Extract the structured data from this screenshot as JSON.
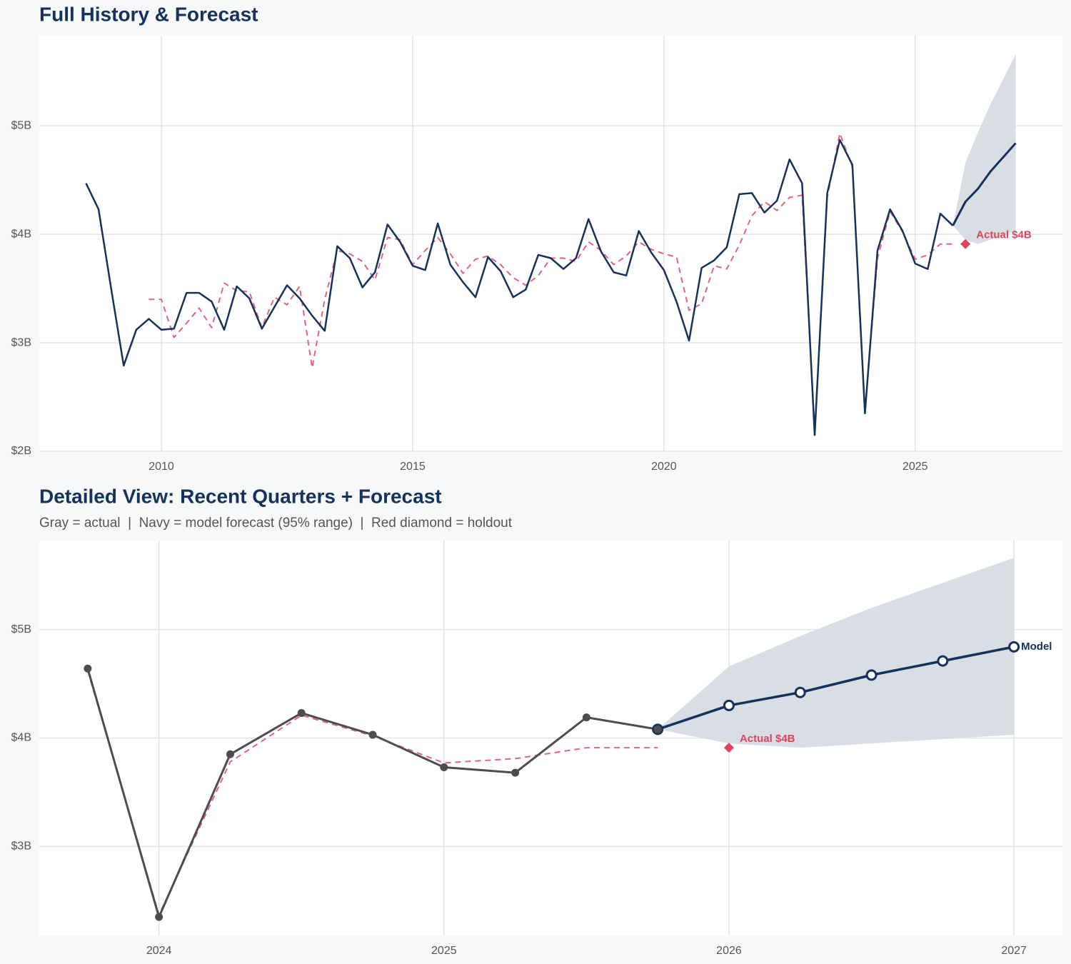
{
  "chart_data": [
    {
      "type": "line",
      "title": "Full History & Forecast",
      "xlim": [
        2007.57,
        2027.93
      ],
      "xticks": [
        2010,
        2015,
        2020,
        2025
      ],
      "ylim": [
        2,
        5.83
      ],
      "yticks": [
        {
          "value": 2,
          "label": "$2B"
        },
        {
          "value": 3,
          "label": "$3B"
        },
        {
          "value": 4,
          "label": "$4B"
        },
        {
          "value": 5,
          "label": "$5B"
        }
      ],
      "grid": true,
      "band": {
        "color": "#d5dae2",
        "x": [
          2025.75,
          2026,
          2026.25,
          2026.5,
          2026.75,
          2027
        ],
        "upper": [
          4.08,
          4.66,
          4.94,
          5.2,
          5.43,
          5.66
        ],
        "lower": [
          4.08,
          3.95,
          3.91,
          3.95,
          3.99,
          4.03
        ]
      },
      "series": [
        {
          "color": "#e3647d",
          "dash": true,
          "width": 2,
          "x": [
            2009.75,
            2010,
            2010.25,
            2010.5,
            2010.75,
            2011,
            2011.25,
            2011.5,
            2011.75,
            2012,
            2012.25,
            2012.5,
            2012.75,
            2013,
            2013.25,
            2013.5,
            2013.75,
            2014,
            2014.25,
            2014.5,
            2014.75,
            2015,
            2015.25,
            2015.5,
            2015.75,
            2016,
            2016.25,
            2016.5,
            2016.75,
            2017,
            2017.25,
            2017.5,
            2017.75,
            2018,
            2018.25,
            2018.5,
            2018.75,
            2019,
            2019.25,
            2019.5,
            2019.75,
            2020,
            2020.25,
            2020.5,
            2020.75,
            2021,
            2021.25,
            2021.5,
            2021.75,
            2022,
            2022.25,
            2022.5,
            2022.75,
            2023,
            2023.25,
            2023.5,
            2023.75,
            2024,
            2024.25,
            2024.5,
            2024.75,
            2025,
            2025.25,
            2025.5,
            2025.75
          ],
          "values": [
            3.4,
            3.4,
            3.05,
            3.18,
            3.32,
            3.14,
            3.55,
            3.48,
            3.47,
            3.14,
            3.42,
            3.35,
            3.52,
            2.77,
            3.4,
            3.85,
            3.82,
            3.75,
            3.58,
            3.97,
            3.95,
            3.72,
            3.85,
            3.97,
            3.82,
            3.64,
            3.77,
            3.8,
            3.72,
            3.6,
            3.53,
            3.62,
            3.78,
            3.78,
            3.75,
            3.93,
            3.85,
            3.72,
            3.8,
            3.93,
            3.86,
            3.82,
            3.79,
            3.3,
            3.36,
            3.71,
            3.68,
            3.9,
            4.17,
            4.3,
            4.22,
            4.34,
            4.36,
            2.2,
            4.34,
            4.93,
            4.62,
            2.37,
            3.78,
            4.21,
            4.02,
            3.77,
            3.81,
            3.91,
            3.91
          ]
        },
        {
          "color": "#14325c",
          "width": 3,
          "x": [
            2025.75,
            2026,
            2026.25,
            2026.5,
            2026.75,
            2027
          ],
          "values": [
            4.08,
            4.3,
            4.42,
            4.58,
            4.71,
            4.84
          ]
        },
        {
          "color": "#14325c",
          "width": 2.5,
          "x": [
            2008.5,
            2008.75,
            2009,
            2009.25,
            2009.5,
            2009.75,
            2010,
            2010.25,
            2010.5,
            2010.75,
            2011,
            2011.25,
            2011.5,
            2011.75,
            2012,
            2012.25,
            2012.5,
            2012.75,
            2013,
            2013.25,
            2013.5,
            2013.75,
            2014,
            2014.25,
            2014.5,
            2014.75,
            2015,
            2015.25,
            2015.5,
            2015.75,
            2016,
            2016.25,
            2016.5,
            2016.75,
            2017,
            2017.25,
            2017.5,
            2017.75,
            2018,
            2018.25,
            2018.5,
            2018.75,
            2019,
            2019.25,
            2019.5,
            2019.75,
            2020,
            2020.25,
            2020.5,
            2020.75,
            2021,
            2021.25,
            2021.5,
            2021.75,
            2022,
            2022.25,
            2022.5,
            2022.75,
            2023,
            2023.25,
            2023.5,
            2023.75,
            2024,
            2024.25,
            2024.5,
            2024.75,
            2025,
            2025.25,
            2025.5,
            2025.75
          ],
          "values": [
            4.47,
            4.23,
            3.5,
            2.79,
            3.12,
            3.22,
            3.12,
            3.13,
            3.46,
            3.46,
            3.38,
            3.12,
            3.52,
            3.41,
            3.13,
            3.33,
            3.53,
            3.41,
            3.25,
            3.11,
            3.89,
            3.78,
            3.51,
            3.65,
            4.09,
            3.93,
            3.71,
            3.67,
            4.1,
            3.72,
            3.56,
            3.42,
            3.79,
            3.66,
            3.42,
            3.49,
            3.81,
            3.78,
            3.68,
            3.78,
            4.14,
            3.84,
            3.65,
            3.62,
            4.03,
            3.83,
            3.67,
            3.38,
            3.02,
            3.69,
            3.76,
            3.88,
            4.37,
            4.38,
            4.2,
            4.31,
            4.69,
            4.47,
            2.15,
            4.38,
            4.87,
            4.64,
            2.35,
            3.85,
            4.23,
            4.03,
            3.73,
            3.68,
            4.19,
            4.08
          ]
        }
      ],
      "holdout": {
        "x": 2026,
        "value": 3.91,
        "label": "Actual $4B",
        "color": "#e0445f"
      }
    },
    {
      "type": "line",
      "title": "Detailed View: Recent Quarters + Forecast",
      "subtitle": "Gray = actual  |  Navy = model forecast (95% range)  |  Red diamond = holdout",
      "xlim": [
        2023.58,
        2027.17
      ],
      "xticks": [
        2024,
        2025,
        2026,
        2027
      ],
      "ylim": [
        2.18,
        5.82
      ],
      "yticks": [
        {
          "value": 3,
          "label": "$3B"
        },
        {
          "value": 4,
          "label": "$4B"
        },
        {
          "value": 5,
          "label": "$5B"
        }
      ],
      "grid": true,
      "band": {
        "color": "#d5dae2",
        "x": [
          2025.75,
          2026,
          2026.25,
          2026.5,
          2026.75,
          2027
        ],
        "upper": [
          4.08,
          4.66,
          4.94,
          5.2,
          5.43,
          5.66
        ],
        "lower": [
          4.08,
          3.95,
          3.91,
          3.95,
          3.99,
          4.03
        ]
      },
      "series": [
        {
          "color": "#e3647d",
          "dash": true,
          "width": 2,
          "x": [
            2023.75,
            2024,
            2024.25,
            2024.5,
            2024.75,
            2025,
            2025.25,
            2025.5,
            2025.75
          ],
          "values": [
            4.62,
            2.37,
            3.78,
            4.21,
            4.02,
            3.77,
            3.81,
            3.91,
            3.91
          ]
        },
        {
          "color": "#14325c",
          "width": 3.5,
          "marker": "open",
          "end_label": "Model",
          "x": [
            2025.75,
            2026,
            2026.25,
            2026.5,
            2026.75,
            2027
          ],
          "values": [
            4.08,
            4.3,
            4.42,
            4.58,
            4.71,
            4.84
          ]
        },
        {
          "color": "#4d4d4d",
          "width": 3,
          "marker": "filled",
          "x": [
            2023.75,
            2024,
            2024.25,
            2024.5,
            2024.75,
            2025,
            2025.25,
            2025.5,
            2025.75
          ],
          "values": [
            4.64,
            2.35,
            3.85,
            4.23,
            4.03,
            3.73,
            3.68,
            4.19,
            4.08
          ]
        }
      ],
      "holdout": {
        "x": 2026,
        "value": 3.91,
        "label": "Actual $4B",
        "color": "#e0445f"
      }
    }
  ]
}
